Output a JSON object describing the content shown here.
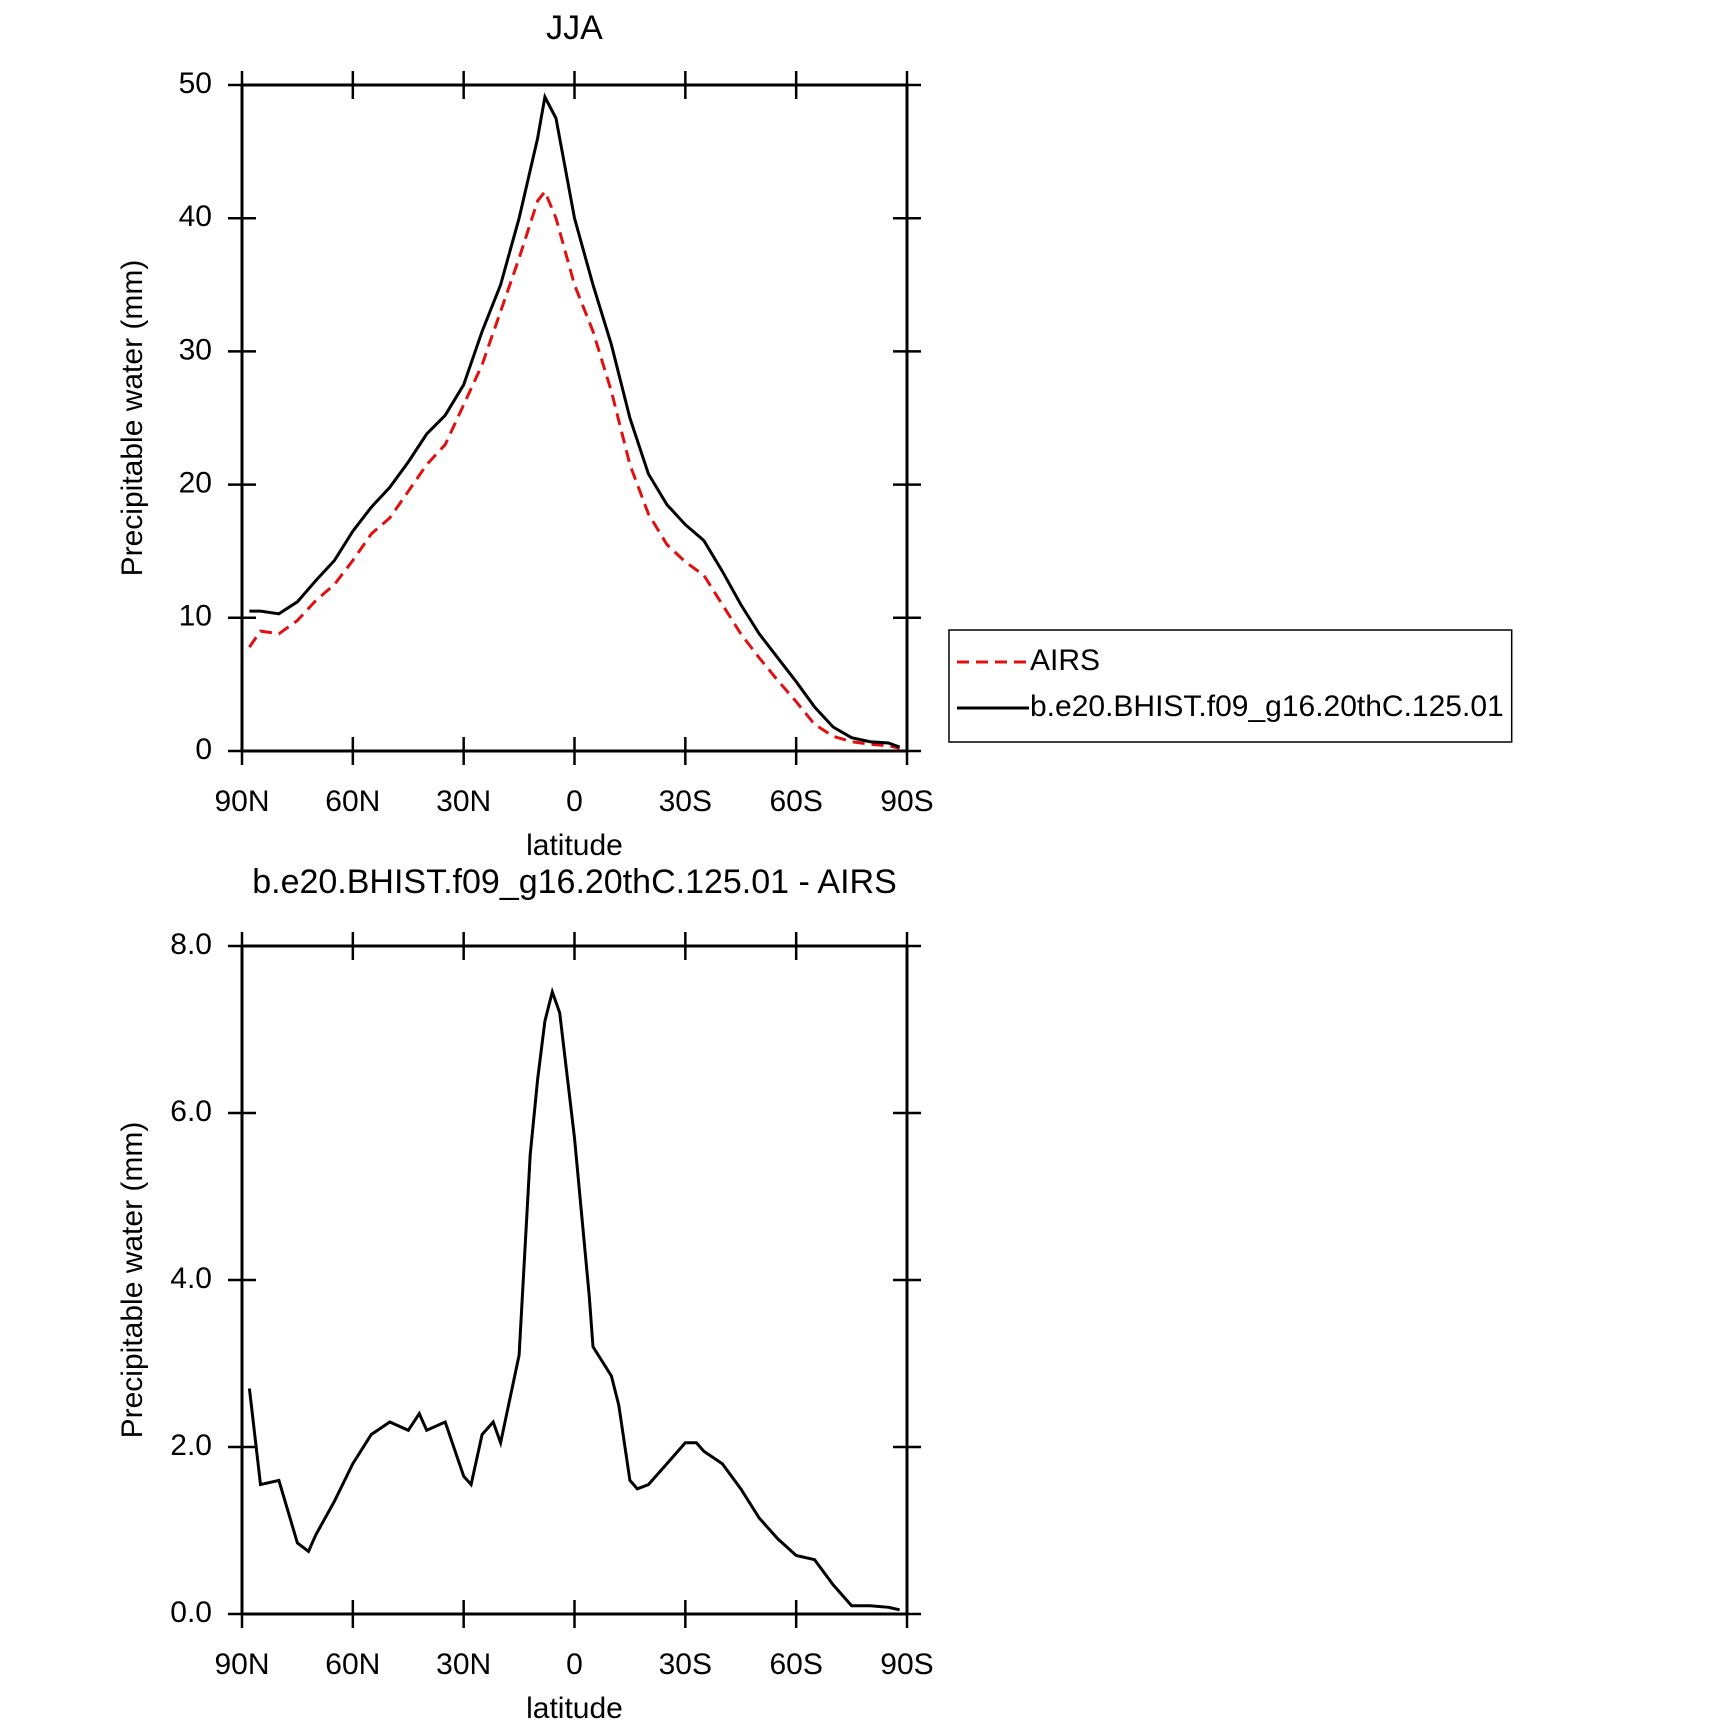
{
  "chart_data": [
    {
      "type": "line",
      "title": "JJA",
      "xlabel": "latitude",
      "ylabel": "Precipitable water (mm)",
      "x": [
        88,
        85,
        80,
        75,
        70,
        65,
        60,
        55,
        50,
        45,
        40,
        35,
        30,
        25,
        20,
        15,
        10,
        8,
        5,
        0,
        -5,
        -10,
        -15,
        -20,
        -25,
        -30,
        -35,
        -40,
        -45,
        -50,
        -55,
        -60,
        -65,
        -70,
        -75,
        -80,
        -85,
        -88
      ],
      "series": [
        {
          "name": "AIRS",
          "color": "#e01010",
          "dash": true,
          "values": [
            7.8,
            9,
            8.8,
            9.8,
            11.3,
            12.5,
            14.3,
            16.3,
            17.5,
            19.5,
            21.5,
            23,
            26,
            29,
            33,
            37,
            41.3,
            42,
            40,
            35,
            31.5,
            27,
            21.5,
            17.8,
            15.5,
            14.2,
            13.2,
            11,
            8.8,
            7,
            5.3,
            3.7,
            2,
            1.1,
            0.7,
            0.5,
            0.4,
            0.2
          ]
        },
        {
          "name": "b.e20.BHIST.f09_g16.20thC.125.01",
          "color": "#000000",
          "dash": false,
          "values": [
            10.5,
            10.5,
            10.3,
            11.2,
            12.8,
            14.3,
            16.5,
            18.3,
            19.8,
            21.7,
            23.8,
            25.2,
            27.5,
            31.5,
            35,
            40,
            46,
            49.1,
            47.5,
            40,
            35,
            30.5,
            25,
            20.8,
            18.5,
            17,
            15.8,
            13.5,
            11,
            8.8,
            7,
            5.2,
            3.3,
            1.8,
            1,
            0.7,
            0.6,
            0.3
          ]
        }
      ],
      "xlim": [
        90,
        -90
      ],
      "xticks": [
        {
          "value": 90,
          "label": "90N"
        },
        {
          "value": 60,
          "label": "60N"
        },
        {
          "value": 30,
          "label": "30N"
        },
        0,
        {
          "value": -30,
          "label": "30S"
        },
        {
          "value": -60,
          "label": "60S"
        },
        {
          "value": -90,
          "label": "90S"
        }
      ],
      "ylim": [
        0,
        50
      ],
      "yticks": [
        0,
        10,
        20,
        30,
        40,
        50
      ],
      "legend": "right"
    },
    {
      "type": "line",
      "title": "b.e20.BHIST.f09_g16.20thC.125.01 - AIRS",
      "xlabel": "latitude",
      "ylabel": "Precipitable water (mm)",
      "x": [
        88,
        85,
        80,
        75,
        72,
        70,
        65,
        60,
        55,
        50,
        45,
        42,
        40,
        35,
        30,
        28,
        25,
        22,
        20,
        15,
        12,
        10,
        8,
        6,
        4,
        0,
        -4,
        -5,
        -10,
        -12,
        -15,
        -17,
        -20,
        -25,
        -30,
        -33,
        -35,
        -40,
        -45,
        -50,
        -55,
        -60,
        -65,
        -70,
        -75,
        -80,
        -85,
        -88
      ],
      "series": [
        {
          "color": "#000000",
          "dash": false,
          "values": [
            2.7,
            1.55,
            1.6,
            0.85,
            0.75,
            0.95,
            1.35,
            1.8,
            2.15,
            2.3,
            2.2,
            2.4,
            2.2,
            2.3,
            1.65,
            1.55,
            2.15,
            2.3,
            2.05,
            3.1,
            5.5,
            6.4,
            7.1,
            7.45,
            7.2,
            5.7,
            3.8,
            3.2,
            2.85,
            2.5,
            1.6,
            1.5,
            1.55,
            1.8,
            2.05,
            2.05,
            1.95,
            1.8,
            1.5,
            1.15,
            0.9,
            0.7,
            0.65,
            0.35,
            0.1,
            0.1,
            0.08,
            0.05
          ]
        }
      ],
      "xlim": [
        90,
        -90
      ],
      "xticks": [
        {
          "value": 90,
          "label": "90N"
        },
        {
          "value": 60,
          "label": "60N"
        },
        {
          "value": 30,
          "label": "30N"
        },
        0,
        {
          "value": -30,
          "label": "30S"
        },
        {
          "value": -60,
          "label": "60S"
        },
        {
          "value": -90,
          "label": "90S"
        }
      ],
      "ylim": [
        0,
        8
      ],
      "yticks": [
        {
          "value": 0,
          "label": "0.0"
        },
        {
          "value": 2,
          "label": "2.0"
        },
        {
          "value": 4,
          "label": "4.0"
        },
        {
          "value": 6,
          "label": "6.0"
        },
        {
          "value": 8,
          "label": "8.0"
        }
      ]
    }
  ]
}
